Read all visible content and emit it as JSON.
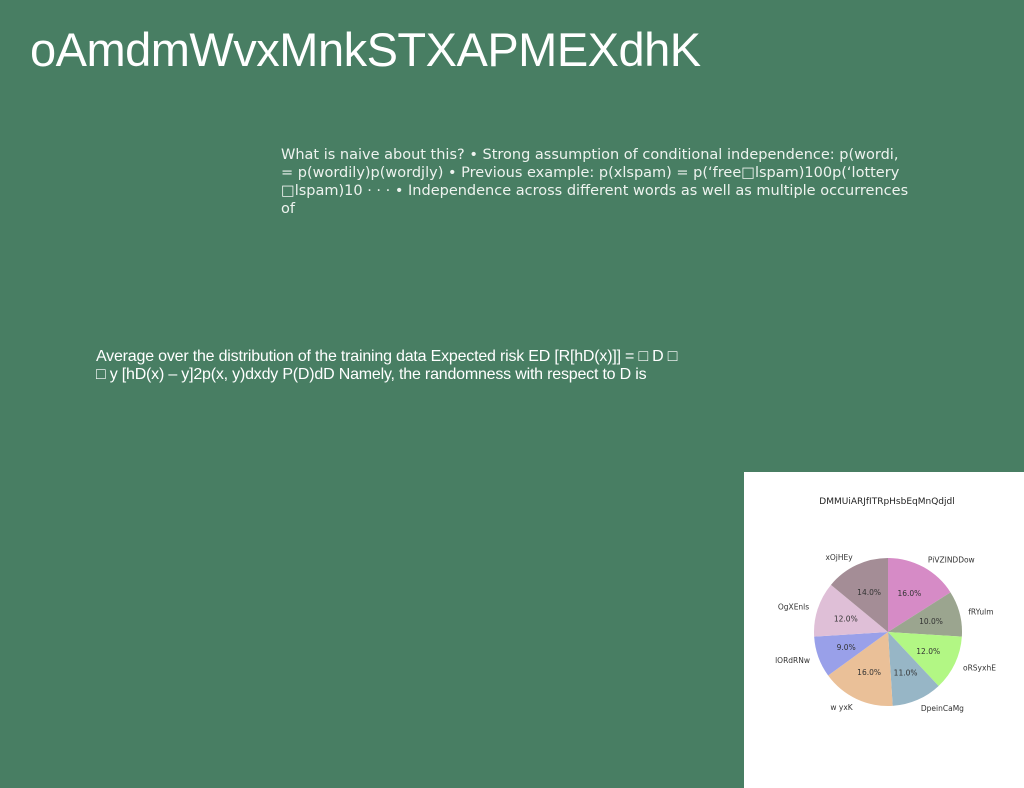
{
  "slide": {
    "title": "oAmdmWvxMnkSTXAPMEXdhK",
    "paragraph_1": "What is naive about this? • Strong assumption of conditional independence: p(wordi,\n= p(wordily)p(wordjly) • Previous example: p(xlspam) = p(‘free□lspam)100p(‘lottery\n□lspam)10 · · · • Independence across different words as well as multiple occurrences of",
    "paragraph_2": "Average over the distribution of the training data Expected risk ED [R[hD(x)]] = □ D □\n□ y [hD(x) – y]2p(x, y)dxdy P(D)dD Namely, the randomness with respect to D is"
  },
  "chart_data": {
    "type": "pie",
    "title": "DMMUiARJfITRpHsbEqMnQdjdl",
    "start_angle_deg": 90,
    "direction": "clockwise",
    "slices": [
      {
        "label": "PiVZINDDow",
        "value": 16.0,
        "pct_text": "16.0%",
        "color": "#d68bc6"
      },
      {
        "label": "fRYulm",
        "value": 10.0,
        "pct_text": "10.0%",
        "color": "#9ba58f"
      },
      {
        "label": "oRSyxhE",
        "value": 12.0,
        "pct_text": "12.0%",
        "color": "#b2f784"
      },
      {
        "label": "DpeinCaMg",
        "value": 11.0,
        "pct_text": "11.0%",
        "color": "#97b6c6"
      },
      {
        "label": "w yxK",
        "value": 16.0,
        "pct_text": "16.0%",
        "color": "#eac098"
      },
      {
        "label": "lORdRNw",
        "value": 9.0,
        "pct_text": "9.0%",
        "color": "#99a0e9"
      },
      {
        "label": "OgXEnls",
        "value": 12.0,
        "pct_text": "12.0%",
        "color": "#dfbfd7"
      },
      {
        "label": "xOjHEy",
        "value": 14.0,
        "pct_text": "14.0%",
        "color": "#a48d96"
      }
    ]
  }
}
